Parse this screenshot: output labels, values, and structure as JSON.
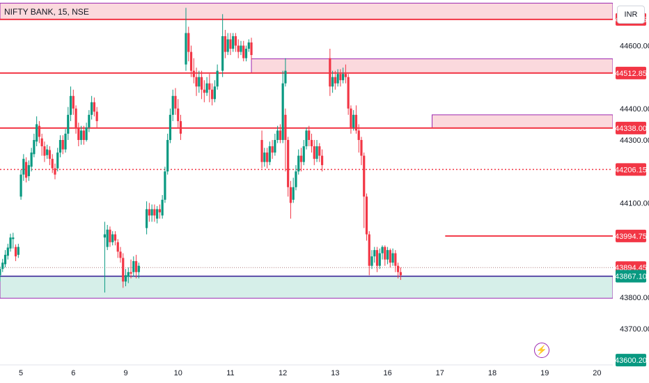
{
  "header": {
    "symbol_title": "NIFTY BANK, 15, NSE",
    "currency": "INR"
  },
  "icons": {
    "alert": "lightning-icon"
  },
  "colors": {
    "up": "#089981",
    "down": "#f23645",
    "zone_fill": "#fbd9dd",
    "zone_border": "#9c27b0",
    "support_fill": "#d6efe9",
    "support_border": "#311b92",
    "level_line": "#f23645"
  },
  "chart_data": {
    "type": "candlestick",
    "title": "NIFTY BANK, 15, NSE",
    "ylim": [
      43585,
      44745
    ],
    "y_ticks": [
      44600,
      44400,
      44300,
      44100,
      43800,
      43700
    ],
    "y_tick_labels": [
      "44600.00",
      "44400.00",
      "44300.00",
      "44100.00",
      "43800.00",
      "43700.00"
    ],
    "x_tick_labels": [
      "5",
      "6",
      "9",
      "10",
      "11",
      "12",
      "13",
      "16",
      "17",
      "18",
      "19",
      "20"
    ],
    "x_tick_positions": [
      0,
      1,
      2,
      3,
      4,
      5,
      6,
      7,
      8,
      9,
      10,
      11
    ],
    "xlim": [
      -0.4,
      11.3
    ],
    "zones": [
      {
        "x0": -0.4,
        "x1": 11.3,
        "y0": 44683.35,
        "y1": 44735,
        "kind": "resistance"
      },
      {
        "x0": 4.4,
        "x1": 11.3,
        "y0": 44512.85,
        "y1": 44558,
        "kind": "resistance"
      },
      {
        "x0": 7.85,
        "x1": 11.3,
        "y0": 44338.0,
        "y1": 44380,
        "kind": "resistance"
      },
      {
        "x0": -0.4,
        "x1": 11.3,
        "y0": 43797,
        "y1": 43867.1,
        "kind": "support"
      }
    ],
    "levels": [
      {
        "y": 44683.35,
        "label": "44683.35",
        "style": "solid",
        "x0": -0.4
      },
      {
        "y": 44512.85,
        "label": "44512.85",
        "style": "solid",
        "x0": -0.4
      },
      {
        "y": 44338.0,
        "label": "44338.00",
        "style": "solid",
        "x0": -0.4
      },
      {
        "y": 44206.15,
        "label": "44206.15",
        "style": "dotted",
        "x0": -0.4
      },
      {
        "y": 43994.75,
        "label": "43994.75",
        "style": "solid",
        "x0": 8.1
      },
      {
        "y": 43894.45,
        "label": "43894.45",
        "style": "dotted",
        "x0": -0.4
      },
      {
        "y": 43867.1,
        "label": "43867.10",
        "style": "support",
        "x0": -0.4
      }
    ],
    "extra_price_labels": [
      {
        "y": 43600.2,
        "label": "43600.20",
        "color": "#089981"
      }
    ],
    "candles": [
      [
        -0.4,
        43870,
        43890,
        43850,
        43898
      ],
      [
        -0.35,
        43890,
        43910,
        43880,
        43922
      ],
      [
        -0.3,
        43905,
        43935,
        43895,
        43950
      ],
      [
        -0.25,
        43932,
        43958,
        43920,
        43970
      ],
      [
        -0.2,
        43955,
        43990,
        43945,
        44002
      ],
      [
        -0.15,
        43985,
        43990,
        43955,
        44005
      ],
      [
        -0.1,
        43960,
        43930,
        43915,
        43968
      ],
      [
        -0.05,
        43935,
        43960,
        43925,
        43970
      ],
      [
        0.0,
        44120,
        44190,
        44110,
        44205
      ],
      [
        0.05,
        44190,
        44240,
        44170,
        44255
      ],
      [
        0.1,
        44230,
        44180,
        44165,
        44245
      ],
      [
        0.15,
        44185,
        44220,
        44170,
        44235
      ],
      [
        0.2,
        44215,
        44260,
        44200,
        44275
      ],
      [
        0.25,
        44255,
        44300,
        44245,
        44320
      ],
      [
        0.3,
        44295,
        44350,
        44280,
        44375
      ],
      [
        0.35,
        44345,
        44310,
        44290,
        44360
      ],
      [
        0.4,
        44305,
        44280,
        44250,
        44320
      ],
      [
        0.45,
        44280,
        44250,
        44230,
        44295
      ],
      [
        0.5,
        44252,
        44270,
        44240,
        44285
      ],
      [
        0.55,
        44268,
        44240,
        44220,
        44280
      ],
      [
        0.6,
        44240,
        44210,
        44195,
        44255
      ],
      [
        0.65,
        44210,
        44190,
        44175,
        44225
      ],
      [
        0.7,
        44210,
        44260,
        44200,
        44275
      ],
      [
        0.75,
        44260,
        44300,
        44245,
        44315
      ],
      [
        0.8,
        44300,
        44270,
        44255,
        44315
      ],
      [
        0.85,
        44270,
        44320,
        44260,
        44335
      ],
      [
        0.9,
        44320,
        44380,
        44300,
        44405
      ],
      [
        0.95,
        44380,
        44440,
        44360,
        44470
      ],
      [
        1.0,
        44440,
        44400,
        44380,
        44460
      ],
      [
        1.05,
        44400,
        44340,
        44320,
        44410
      ],
      [
        1.1,
        44340,
        44300,
        44280,
        44355
      ],
      [
        1.15,
        44300,
        44330,
        44285,
        44345
      ],
      [
        1.2,
        44330,
        44300,
        44285,
        44345
      ],
      [
        1.25,
        44300,
        44340,
        44295,
        44355
      ],
      [
        1.3,
        44340,
        44380,
        44325,
        44395
      ],
      [
        1.35,
        44380,
        44420,
        44365,
        44440
      ],
      [
        1.4,
        44420,
        44390,
        44375,
        44435
      ],
      [
        1.45,
        44390,
        44360,
        44340,
        44405
      ],
      [
        1.6,
        43990,
        44000,
        43815,
        44040
      ],
      [
        1.65,
        43960,
        44015,
        43950,
        44030
      ],
      [
        1.7,
        44015,
        43975,
        43960,
        44025
      ],
      [
        1.75,
        43975,
        44000,
        43965,
        44010
      ],
      [
        1.8,
        44000,
        43980,
        43965,
        44010
      ],
      [
        1.85,
        43975,
        43945,
        43925,
        43985
      ],
      [
        1.9,
        43945,
        43925,
        43910,
        43960
      ],
      [
        1.95,
        43925,
        43850,
        43830,
        43940
      ],
      [
        2.0,
        43850,
        43870,
        43835,
        43890
      ],
      [
        2.05,
        43865,
        43880,
        43845,
        43895
      ],
      [
        2.1,
        43880,
        43875,
        43860,
        43920
      ],
      [
        2.15,
        43880,
        43915,
        43865,
        43930
      ],
      [
        2.2,
        43915,
        43880,
        43860,
        43935
      ],
      [
        2.25,
        43880,
        43900,
        43860,
        43910
      ],
      [
        2.4,
        44020,
        44080,
        44000,
        44105
      ],
      [
        2.45,
        44080,
        44060,
        44040,
        44100
      ],
      [
        2.5,
        44060,
        44080,
        44040,
        44095
      ],
      [
        2.55,
        44080,
        44060,
        44040,
        44095
      ],
      [
        2.6,
        44050,
        44080,
        44035,
        44090
      ],
      [
        2.65,
        44080,
        44070,
        44050,
        44095
      ],
      [
        2.7,
        44060,
        44110,
        44050,
        44125
      ],
      [
        2.75,
        44110,
        44200,
        44100,
        44215
      ],
      [
        2.8,
        44200,
        44300,
        44190,
        44320
      ],
      [
        2.85,
        44300,
        44380,
        44290,
        44400
      ],
      [
        2.9,
        44380,
        44440,
        44360,
        44460
      ],
      [
        2.95,
        44440,
        44400,
        44380,
        44465
      ],
      [
        3.0,
        44400,
        44360,
        44340,
        44430
      ],
      [
        3.05,
        44360,
        44320,
        44300,
        44380
      ],
      [
        3.15,
        44540,
        44640,
        44520,
        44720
      ],
      [
        3.2,
        44640,
        44580,
        44550,
        44660
      ],
      [
        3.25,
        44580,
        44520,
        44500,
        44600
      ],
      [
        3.3,
        44520,
        44500,
        44480,
        44560
      ],
      [
        3.35,
        44500,
        44470,
        44440,
        44530
      ],
      [
        3.4,
        44470,
        44500,
        44450,
        44520
      ],
      [
        3.45,
        44500,
        44460,
        44430,
        44520
      ],
      [
        3.5,
        44460,
        44450,
        44420,
        44490
      ],
      [
        3.55,
        44450,
        44480,
        44440,
        44500
      ],
      [
        3.6,
        44480,
        44460,
        44420,
        44510
      ],
      [
        3.65,
        44460,
        44430,
        44410,
        44480
      ],
      [
        3.7,
        44430,
        44470,
        44420,
        44490
      ],
      [
        3.75,
        44470,
        44520,
        44460,
        44540
      ],
      [
        3.85,
        44520,
        44630,
        44500,
        44700
      ],
      [
        3.9,
        44630,
        44580,
        44560,
        44650
      ],
      [
        3.95,
        44580,
        44620,
        44570,
        44640
      ],
      [
        4.0,
        44620,
        44590,
        44570,
        44640
      ],
      [
        4.05,
        44590,
        44630,
        44580,
        44640
      ],
      [
        4.1,
        44630,
        44600,
        44580,
        44640
      ],
      [
        4.15,
        44600,
        44580,
        44560,
        44620
      ],
      [
        4.2,
        44580,
        44600,
        44570,
        44615
      ],
      [
        4.25,
        44600,
        44560,
        44550,
        44615
      ],
      [
        4.3,
        44560,
        44590,
        44550,
        44600
      ],
      [
        4.35,
        44590,
        44610,
        44580,
        44620
      ],
      [
        4.4,
        44610,
        44570,
        44555,
        44625
      ],
      [
        4.6,
        44300,
        44230,
        44210,
        44330
      ],
      [
        4.65,
        44230,
        44260,
        44215,
        44275
      ],
      [
        4.7,
        44260,
        44230,
        44210,
        44275
      ],
      [
        4.75,
        44230,
        44280,
        44220,
        44295
      ],
      [
        4.8,
        44280,
        44260,
        44240,
        44300
      ],
      [
        4.85,
        44260,
        44300,
        44250,
        44320
      ],
      [
        4.9,
        44300,
        44330,
        44290,
        44345
      ],
      [
        4.95,
        44330,
        44300,
        44290,
        44350
      ],
      [
        5.0,
        44300,
        44480,
        44290,
        44520
      ],
      [
        5.05,
        44480,
        44520,
        44470,
        44560
      ],
      [
        5.05,
        44380,
        44300,
        44200,
        44400
      ],
      [
        5.1,
        44300,
        44150,
        44120,
        44310
      ],
      [
        5.15,
        44150,
        44100,
        44050,
        44170
      ],
      [
        5.2,
        44110,
        44150,
        44100,
        44180
      ],
      [
        5.25,
        44150,
        44200,
        44140,
        44220
      ],
      [
        5.3,
        44200,
        44250,
        44190,
        44270
      ],
      [
        5.35,
        44250,
        44230,
        44200,
        44275
      ],
      [
        5.4,
        44230,
        44280,
        44220,
        44300
      ],
      [
        5.45,
        44280,
        44330,
        44270,
        44340
      ],
      [
        5.5,
        44330,
        44300,
        44280,
        44345
      ],
      [
        5.55,
        44300,
        44280,
        44260,
        44320
      ],
      [
        5.6,
        44280,
        44240,
        44220,
        44300
      ],
      [
        5.65,
        44240,
        44280,
        44230,
        44300
      ],
      [
        5.7,
        44280,
        44250,
        44230,
        44290
      ],
      [
        5.75,
        44250,
        44220,
        44200,
        44270
      ],
      [
        5.9,
        44560,
        44470,
        44440,
        44590
      ],
      [
        5.95,
        44470,
        44500,
        44450,
        44520
      ],
      [
        6.0,
        44500,
        44480,
        44460,
        44520
      ],
      [
        6.05,
        44480,
        44510,
        44470,
        44525
      ],
      [
        6.1,
        44510,
        44490,
        44470,
        44525
      ],
      [
        6.15,
        44490,
        44510,
        44480,
        44530
      ],
      [
        6.2,
        44510,
        44500,
        44480,
        44540
      ],
      [
        6.25,
        44500,
        44400,
        44380,
        44510
      ],
      [
        6.3,
        44400,
        44340,
        44320,
        44410
      ],
      [
        6.35,
        44340,
        44380,
        44330,
        44395
      ],
      [
        6.4,
        44380,
        44330,
        44320,
        44410
      ],
      [
        6.45,
        44330,
        44300,
        44260,
        44350
      ],
      [
        6.5,
        44300,
        44250,
        44220,
        44310
      ],
      [
        6.55,
        44250,
        44120,
        44020,
        44260
      ],
      [
        6.6,
        44120,
        44000,
        43980,
        44130
      ],
      [
        6.65,
        44000,
        43900,
        43870,
        44010
      ],
      [
        6.7,
        43900,
        43930,
        43890,
        43950
      ],
      [
        6.75,
        43930,
        43950,
        43910,
        43960
      ],
      [
        6.8,
        43950,
        43900,
        43880,
        43960
      ],
      [
        6.85,
        43900,
        43940,
        43890,
        43955
      ],
      [
        6.9,
        43940,
        43960,
        43920,
        43965
      ],
      [
        6.95,
        43960,
        43920,
        43900,
        43965
      ],
      [
        7.0,
        43920,
        43950,
        43905,
        43960
      ],
      [
        7.05,
        43950,
        43910,
        43895,
        43955
      ],
      [
        7.1,
        43910,
        43940,
        43900,
        43955
      ],
      [
        7.15,
        43940,
        43900,
        43880,
        43950
      ],
      [
        7.2,
        43900,
        43880,
        43860,
        43910
      ],
      [
        7.25,
        43880,
        43870,
        43855,
        43895
      ]
    ]
  }
}
